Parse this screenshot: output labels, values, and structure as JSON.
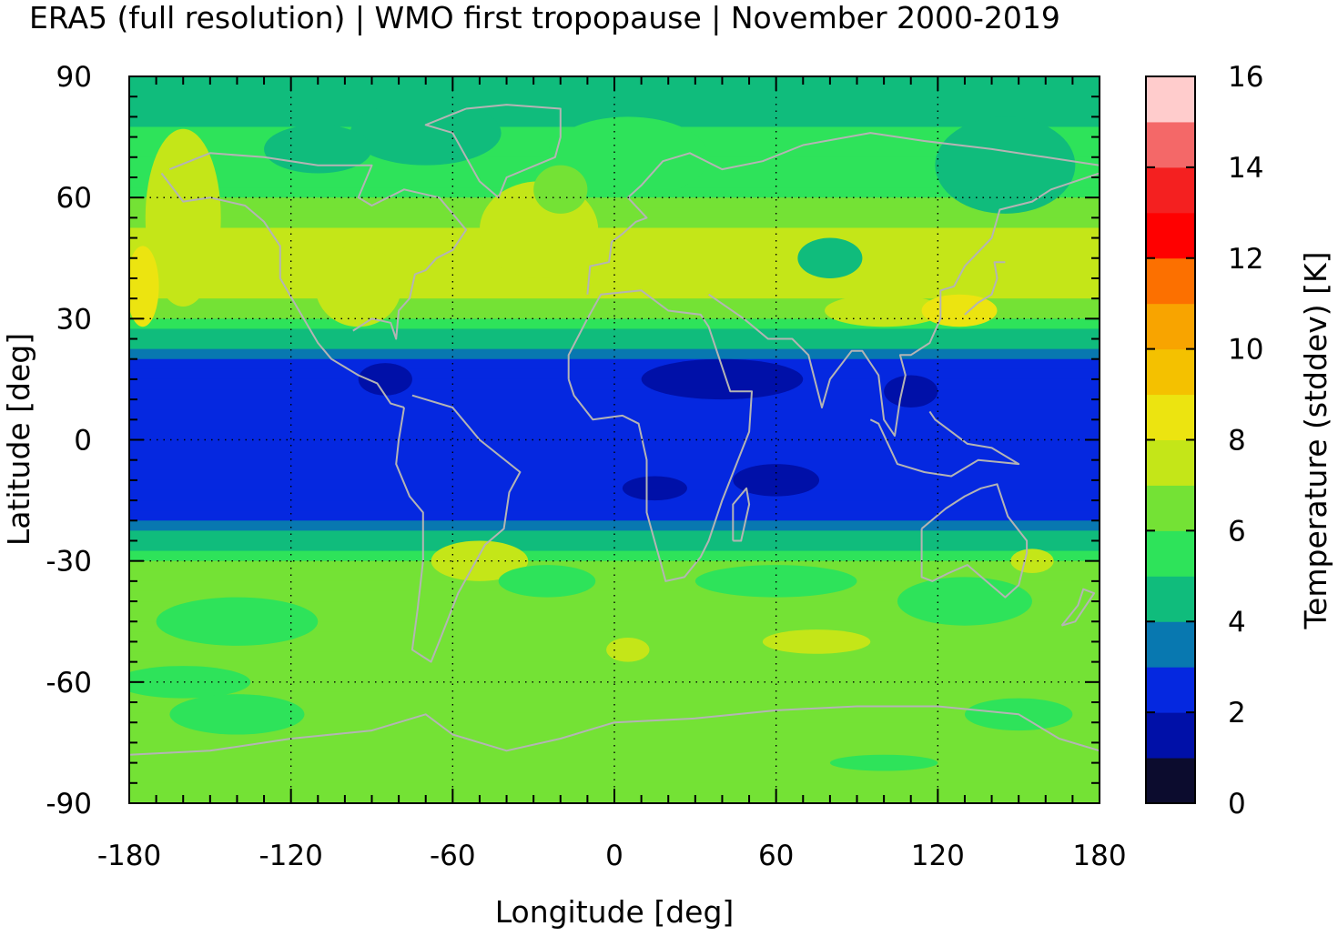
{
  "title": "ERA5 (full resolution) | WMO first tropopause | November 2000-2019",
  "chart_data": {
    "type": "heatmap",
    "title": "ERA5 (full resolution) | WMO first tropopause | November 2000-2019",
    "xlabel": "Longitude [deg]",
    "ylabel": "Latitude [deg]",
    "colorbar_label": "Temperature (stddev) [K]",
    "xlim": [
      -180,
      180
    ],
    "ylim": [
      -90,
      90
    ],
    "xticks": [
      "-180",
      "-120",
      "-60",
      "0",
      "60",
      "120",
      "180"
    ],
    "yticks": [
      "90",
      "60",
      "30",
      "0",
      "-30",
      "-60",
      "-90"
    ],
    "colorbar_ticks": [
      "16",
      "14",
      "12",
      "10",
      "8",
      "6",
      "4",
      "2",
      "0"
    ],
    "colorbar_range": [
      0,
      16
    ],
    "grid": true,
    "zonal_profile": {
      "lat": [
        90,
        80,
        70,
        60,
        50,
        40,
        30,
        25,
        20,
        10,
        0,
        -10,
        -20,
        -25,
        -30,
        -40,
        -50,
        -60,
        -70,
        -80,
        -90
      ],
      "values": [
        4.5,
        4.8,
        5.5,
        6.0,
        7.2,
        7.5,
        6.2,
        4.5,
        2.5,
        2.2,
        2.3,
        2.3,
        3.0,
        4.5,
        6.0,
        6.5,
        6.5,
        6.2,
        6.0,
        6.5,
        6.5
      ]
    },
    "colorbar_colors": [
      "#0c0c2e",
      "#0010a8",
      "#0528e0",
      "#0878b0",
      "#10bc7c",
      "#2ee35a",
      "#74e235",
      "#c4e618",
      "#ece410",
      "#f4c100",
      "#f8a400",
      "#fc7000",
      "#ff0000",
      "#f42020",
      "#f46868",
      "#ffcccc"
    ]
  }
}
